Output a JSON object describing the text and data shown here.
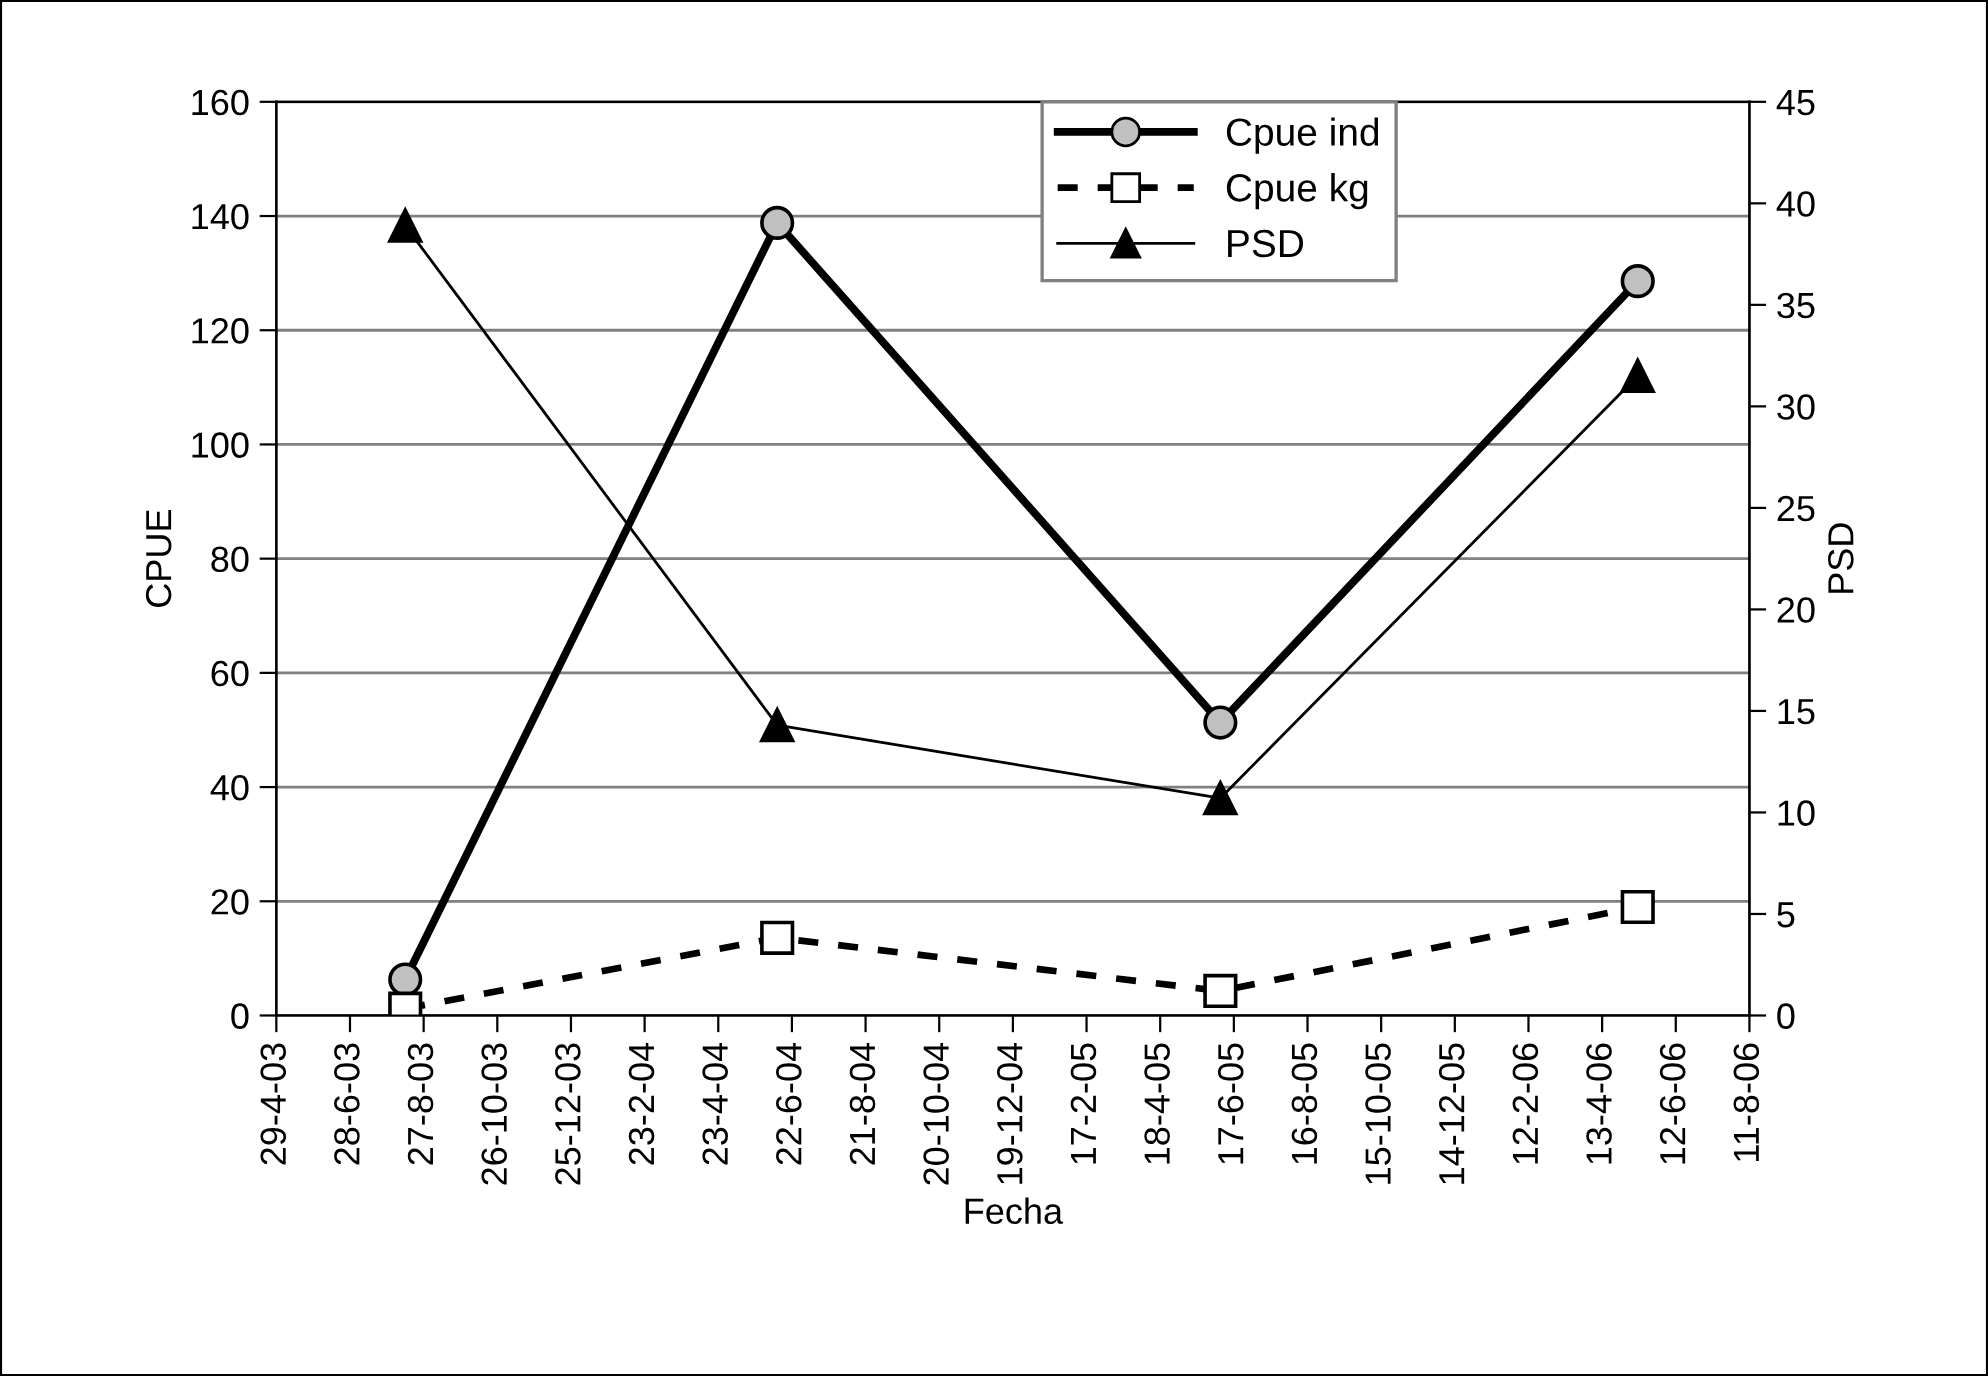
{
  "chart_data": {
    "type": "line",
    "xlabel": "Fecha",
    "ylabel": "CPUE",
    "y2label": "PSD",
    "x": [
      "2003-08-12",
      "2004-06-10",
      "2005-06-06",
      "2006-05-12"
    ],
    "series": [
      {
        "name": "Cpue ind",
        "color": "#000000",
        "values": [
          6.3,
          138.8,
          51.3,
          128.6
        ],
        "marker": "circle",
        "line_style": "solid"
      },
      {
        "name": "Cpue kg",
        "color": "#000000",
        "values": [
          1.2,
          13.6,
          4.3,
          19.0
        ],
        "marker": "square",
        "line_style": "dashed"
      },
      {
        "name": "PSD",
        "color": "#000000",
        "values": [
          38.9,
          14.3,
          10.7,
          31.5
        ],
        "marker": "triangle",
        "line_style": "solid",
        "axis": "y2"
      }
    ],
    "xlim": [
      "2003-04-29",
      "2006-08-11"
    ],
    "xticks": [
      {
        "value": "2003-04-29",
        "label": "29-4-03"
      },
      {
        "value": "2003-06-28",
        "label": "28-6-03"
      },
      {
        "value": "2003-08-27",
        "label": "27-8-03"
      },
      {
        "value": "2003-10-26",
        "label": "26-10-03"
      },
      {
        "value": "2003-12-25",
        "label": "25-12-03"
      },
      {
        "value": "2004-02-23",
        "label": "23-2-04"
      },
      {
        "value": "2004-04-23",
        "label": "23-4-04"
      },
      {
        "value": "2004-06-22",
        "label": "22-6-04"
      },
      {
        "value": "2004-08-21",
        "label": "21-8-04"
      },
      {
        "value": "2004-10-20",
        "label": "20-10-04"
      },
      {
        "value": "2004-12-19",
        "label": "19-12-04"
      },
      {
        "value": "2005-02-17",
        "label": "17-2-05"
      },
      {
        "value": "2005-04-18",
        "label": "18-4-05"
      },
      {
        "value": "2005-06-17",
        "label": "17-6-05"
      },
      {
        "value": "2005-08-16",
        "label": "16-8-05"
      },
      {
        "value": "2005-10-15",
        "label": "15-10-05"
      },
      {
        "value": "2005-12-14",
        "label": "14-12-05"
      },
      {
        "value": "2006-02-12",
        "label": "12-2-06"
      },
      {
        "value": "2006-04-13",
        "label": "13-4-06"
      },
      {
        "value": "2006-06-12",
        "label": "12-6-06"
      },
      {
        "value": "2006-08-11",
        "label": "11-8-06"
      }
    ],
    "ylim": [
      0,
      160
    ],
    "yticks": [
      0,
      20,
      40,
      60,
      80,
      100,
      120,
      140,
      160
    ],
    "y2lim": [
      0,
      45
    ],
    "y2ticks": [
      0,
      5,
      10,
      15,
      20,
      25,
      30,
      35,
      40,
      45
    ],
    "grid": "y",
    "legend": "top"
  }
}
